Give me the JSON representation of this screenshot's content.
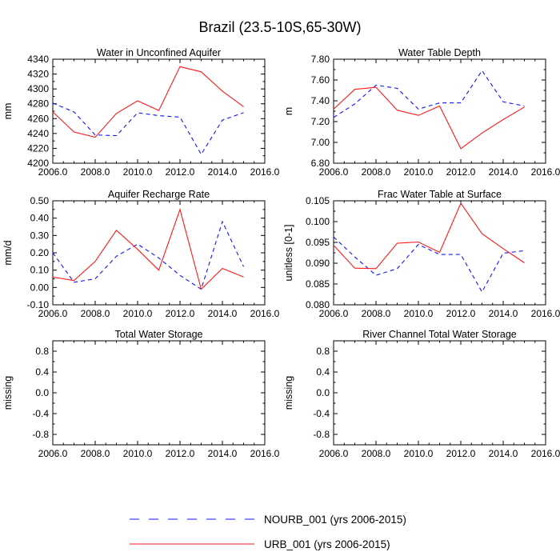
{
  "title": "Brazil (23.5-10S,65-30W)",
  "legend": {
    "items": [
      {
        "label": "NOURB_001 (yrs 2006-2015)",
        "color": "#1414ff",
        "style": "dashed"
      },
      {
        "label": "URB_001 (yrs 2006-2015)",
        "color": "#ff1a1a",
        "style": "solid"
      }
    ]
  },
  "chart_data": [
    {
      "type": "line",
      "title": "Water in Unconfined Aquifer",
      "ylabel": "mm",
      "xlim": [
        2006,
        2016
      ],
      "ylim": [
        4200,
        4340
      ],
      "xticks": [
        "2006.0",
        "2008.0",
        "2010.0",
        "2012.0",
        "2014.0",
        "2016.0"
      ],
      "yticks": [
        "4200",
        "4220",
        "4240",
        "4260",
        "4280",
        "4300",
        "4320",
        "4340"
      ],
      "x": [
        2006,
        2007,
        2008,
        2009,
        2010,
        2011,
        2012,
        2013,
        2014,
        2015
      ],
      "series": [
        {
          "name": "NOURB_001",
          "values": [
            4281,
            4269,
            4238,
            4237,
            4268,
            4264,
            4262,
            4212,
            4258,
            4268
          ]
        },
        {
          "name": "URB_001",
          "values": [
            4269,
            4242,
            4235,
            4267,
            4284,
            4271,
            4330,
            4323,
            4297,
            4276
          ]
        }
      ]
    },
    {
      "type": "line",
      "title": "Water Table Depth",
      "ylabel": "m",
      "xlim": [
        2006,
        2016
      ],
      "ylim": [
        6.8,
        7.8
      ],
      "xticks": [
        "2006.0",
        "2008.0",
        "2010.0",
        "2012.0",
        "2014.0",
        "2016.0"
      ],
      "yticks": [
        "6.80",
        "7.00",
        "7.20",
        "7.40",
        "7.60",
        "7.80"
      ],
      "x": [
        2006,
        2007,
        2008,
        2009,
        2010,
        2011,
        2012,
        2013,
        2014,
        2015
      ],
      "series": [
        {
          "name": "NOURB_001",
          "values": [
            7.24,
            7.37,
            7.55,
            7.52,
            7.32,
            7.38,
            7.38,
            7.69,
            7.39,
            7.35
          ]
        },
        {
          "name": "URB_001",
          "values": [
            7.32,
            7.51,
            7.53,
            7.31,
            7.26,
            7.35,
            6.94,
            7.09,
            7.22,
            7.34
          ]
        }
      ]
    },
    {
      "type": "line",
      "title": "Aquifer Recharge Rate",
      "ylabel": "mm/d",
      "xlim": [
        2006,
        2016
      ],
      "ylim": [
        -0.1,
        0.5
      ],
      "xticks": [
        "2006.0",
        "2008.0",
        "2010.0",
        "2012.0",
        "2014.0",
        "2016.0"
      ],
      "yticks": [
        "-0.10",
        "0.00",
        "0.10",
        "0.20",
        "0.30",
        "0.40",
        "0.50"
      ],
      "x": [
        2006,
        2007,
        2008,
        2009,
        2010,
        2011,
        2012,
        2013,
        2014,
        2015
      ],
      "series": [
        {
          "name": "NOURB_001",
          "values": [
            0.2,
            0.03,
            0.05,
            0.18,
            0.25,
            0.17,
            0.07,
            -0.01,
            0.38,
            0.12
          ]
        },
        {
          "name": "URB_001",
          "values": [
            0.06,
            0.04,
            0.15,
            0.33,
            0.22,
            0.1,
            0.45,
            -0.01,
            0.11,
            0.06
          ]
        }
      ]
    },
    {
      "type": "line",
      "title": "Frac Water Table at Surface",
      "ylabel": "unitless [0-1]",
      "xlim": [
        2006,
        2016
      ],
      "ylim": [
        0.08,
        0.105
      ],
      "xticks": [
        "2006.0",
        "2008.0",
        "2010.0",
        "2012.0",
        "2014.0",
        "2016.0"
      ],
      "yticks": [
        "0.080",
        "0.085",
        "0.090",
        "0.095",
        "0.100",
        "0.105"
      ],
      "x": [
        2006,
        2007,
        2008,
        2009,
        2010,
        2011,
        2012,
        2013,
        2014,
        2015
      ],
      "series": [
        {
          "name": "NOURB_001",
          "values": [
            0.0963,
            0.0915,
            0.0871,
            0.0887,
            0.0945,
            0.0921,
            0.0921,
            0.0831,
            0.0924,
            0.093
          ]
        },
        {
          "name": "URB_001",
          "values": [
            0.0943,
            0.0888,
            0.0887,
            0.0948,
            0.0951,
            0.0926,
            0.1044,
            0.0971,
            0.0935,
            0.0901
          ]
        }
      ]
    },
    {
      "type": "line",
      "title": "Total Water Storage",
      "ylabel": "missing",
      "xlim": [
        2006,
        2016
      ],
      "ylim": [
        -1,
        1
      ],
      "xticks": [
        "2006.0",
        "2008.0",
        "2010.0",
        "2012.0",
        "2014.0",
        "2016.0"
      ],
      "yticks": [
        "-0.8",
        "-0.4",
        "0.0",
        "0.4",
        "0.8"
      ],
      "ytick_values": [
        -0.8,
        -0.4,
        0.0,
        0.4,
        0.8
      ],
      "x": [],
      "series": []
    },
    {
      "type": "line",
      "title": "River Channel Total Water Storage",
      "ylabel": "missing",
      "xlim": [
        2006,
        2016
      ],
      "ylim": [
        -1,
        1
      ],
      "xticks": [
        "2006.0",
        "2008.0",
        "2010.0",
        "2012.0",
        "2014.0",
        "2016.0"
      ],
      "yticks": [
        "-0.8",
        "-0.4",
        "0.0",
        "0.4",
        "0.8"
      ],
      "ytick_values": [
        -0.8,
        -0.4,
        0.0,
        0.4,
        0.8
      ],
      "x": [],
      "series": []
    }
  ]
}
